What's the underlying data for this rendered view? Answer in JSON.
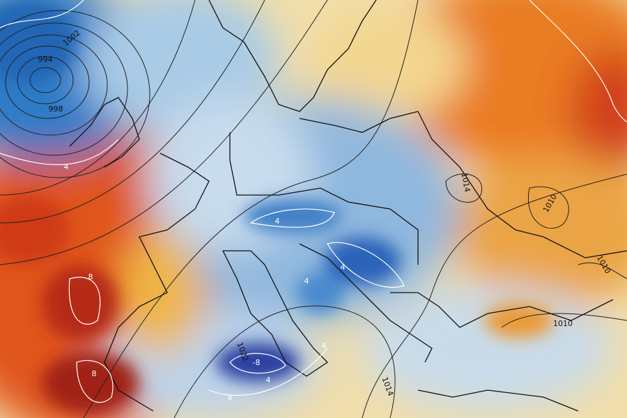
{
  "isobar_labels": [
    "994",
    "998",
    "1002",
    "1014",
    "1010",
    "1010",
    "1010",
    "1014",
    "1022"
  ],
  "temperature_labels": [
    "4",
    "4",
    "4",
    "8",
    "8",
    "-8",
    "4",
    "4",
    "4",
    "4"
  ]
}
